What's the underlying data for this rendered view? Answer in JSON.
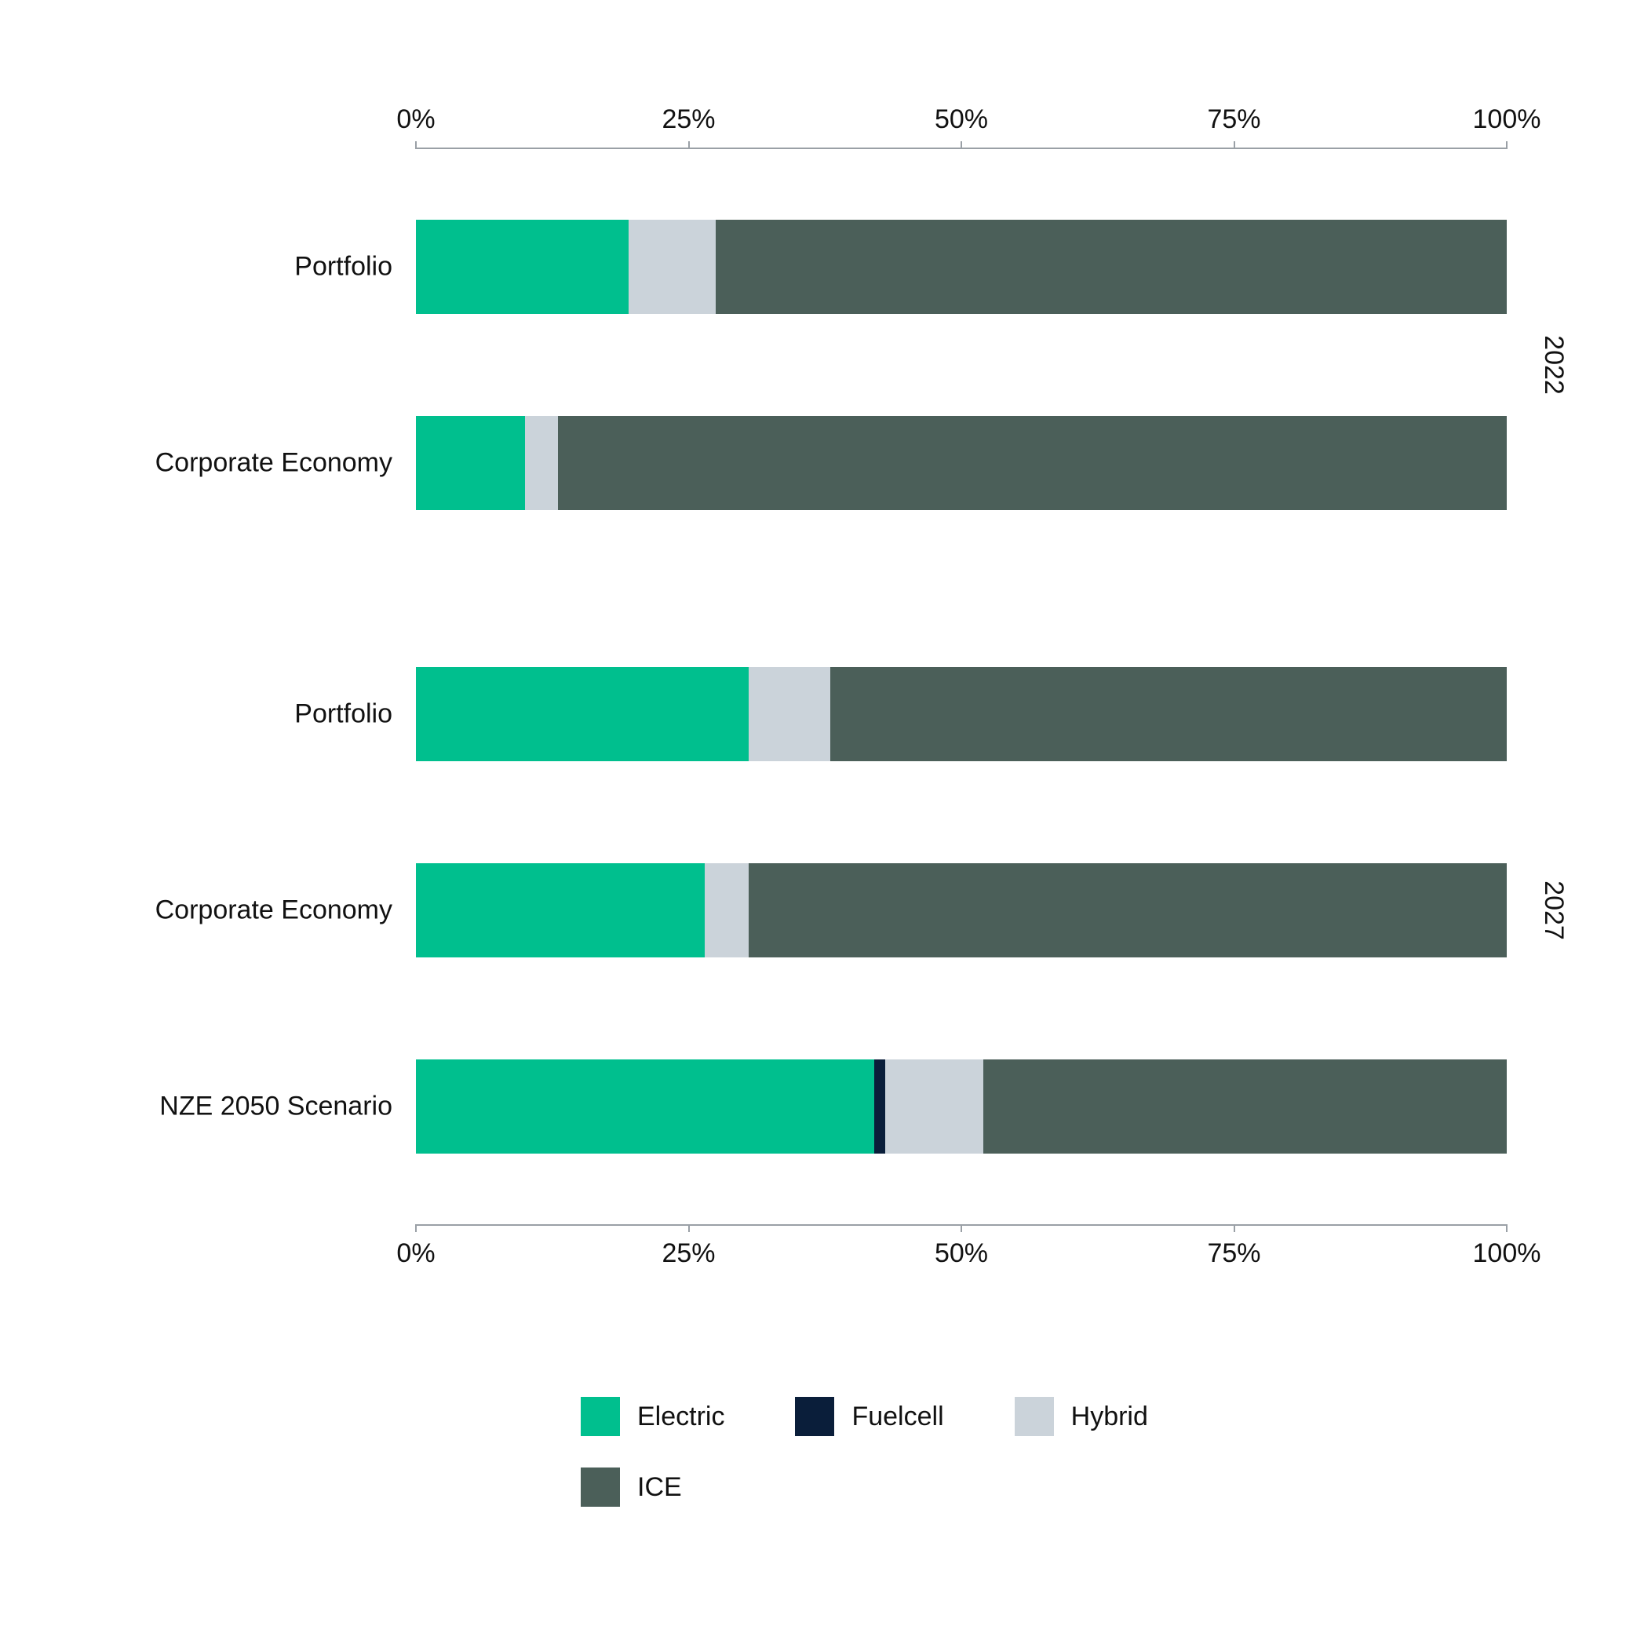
{
  "chart": {
    "type": "stacked-bar-horizontal",
    "background_color": "#ffffff",
    "axis_color": "#9aa0a6",
    "text_color": "#111111",
    "label_fontsize_pt": 26,
    "xlim": [
      0,
      100
    ],
    "xtick_positions": [
      0,
      25,
      50,
      75,
      100
    ],
    "xtick_labels": [
      "0%",
      "25%",
      "50%",
      "75%",
      "100%"
    ],
    "series": [
      {
        "key": "electric",
        "label": "Electric",
        "color": "#00bf8e"
      },
      {
        "key": "fuelcell",
        "label": "Fuelcell",
        "color": "#0a1e3a"
      },
      {
        "key": "hybrid",
        "label": "Hybrid",
        "color": "#cbd3da"
      },
      {
        "key": "ice",
        "label": "ICE",
        "color": "#4b5f59"
      }
    ],
    "groups": [
      {
        "year": "2022",
        "rows": [
          {
            "label": "Portfolio",
            "values": {
              "electric": 19.5,
              "fuelcell": 0.0,
              "hybrid": 8.0,
              "ice": 72.5
            }
          },
          {
            "label": "Corporate Economy",
            "values": {
              "electric": 10.0,
              "fuelcell": 0.0,
              "hybrid": 3.0,
              "ice": 87.0
            }
          }
        ]
      },
      {
        "year": "2027",
        "rows": [
          {
            "label": "Portfolio",
            "values": {
              "electric": 30.5,
              "fuelcell": 0.0,
              "hybrid": 7.5,
              "ice": 62.0
            }
          },
          {
            "label": "Corporate Economy",
            "values": {
              "electric": 26.5,
              "fuelcell": 0.0,
              "hybrid": 4.0,
              "ice": 69.5
            }
          },
          {
            "label": "NZE 2050 Scenario",
            "values": {
              "electric": 42.0,
              "fuelcell": 1.0,
              "hybrid": 9.0,
              "ice": 48.0
            }
          }
        ]
      }
    ],
    "legend": {
      "rows": [
        [
          "electric",
          "fuelcell",
          "hybrid"
        ],
        [
          "ice"
        ]
      ]
    }
  }
}
